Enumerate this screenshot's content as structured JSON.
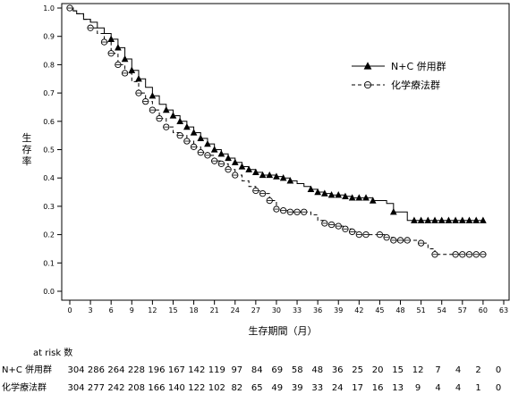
{
  "chart_data": {
    "type": "line",
    "xlabel": "生存期間（月）",
    "ylabel": "生存率",
    "xlim": [
      0,
      63
    ],
    "ylim": [
      0,
      1.0
    ],
    "x_ticks": [
      0,
      3,
      6,
      9,
      12,
      15,
      18,
      21,
      24,
      27,
      30,
      33,
      36,
      39,
      42,
      45,
      48,
      51,
      54,
      57,
      60,
      63
    ],
    "y_ticks": [
      0.0,
      0.1,
      0.2,
      0.3,
      0.4,
      0.5,
      0.6,
      0.7,
      0.8,
      0.9,
      1.0
    ],
    "x_tick_labels": [
      "0",
      "3",
      "6",
      "9",
      "12",
      "15",
      "18",
      "21",
      "24",
      "27",
      "30",
      "33",
      "36",
      "39",
      "42",
      "45",
      "48",
      "51",
      "54",
      "57",
      "60",
      "63"
    ],
    "y_tick_labels": [
      "0.0",
      "0.1",
      "0.2",
      "0.3",
      "0.4",
      "0.5",
      "0.6",
      "0.7",
      "0.8",
      "0.9",
      "1.0"
    ],
    "grid": false,
    "legend_position": "top-right",
    "series": [
      {
        "name": "N+C 併用群",
        "style": "solid",
        "marker": "triangle",
        "color": "#000000",
        "points": [
          [
            0,
            1.0
          ],
          [
            0.5,
            0.99
          ],
          [
            1,
            0.98
          ],
          [
            2,
            0.96
          ],
          [
            3,
            0.95
          ],
          [
            4,
            0.93
          ],
          [
            5,
            0.91
          ],
          [
            6,
            0.89
          ],
          [
            7,
            0.86
          ],
          [
            8,
            0.82
          ],
          [
            9,
            0.78
          ],
          [
            10,
            0.75
          ],
          [
            11,
            0.72
          ],
          [
            12,
            0.69
          ],
          [
            13,
            0.66
          ],
          [
            14,
            0.64
          ],
          [
            15,
            0.62
          ],
          [
            16,
            0.6
          ],
          [
            17,
            0.58
          ],
          [
            18,
            0.56
          ],
          [
            19,
            0.54
          ],
          [
            20,
            0.52
          ],
          [
            21,
            0.5
          ],
          [
            22,
            0.485
          ],
          [
            23,
            0.47
          ],
          [
            24,
            0.455
          ],
          [
            25,
            0.44
          ],
          [
            26,
            0.43
          ],
          [
            27,
            0.42
          ],
          [
            28,
            0.41
          ],
          [
            29,
            0.41
          ],
          [
            30,
            0.405
          ],
          [
            31,
            0.4
          ],
          [
            32,
            0.39
          ],
          [
            33,
            0.38
          ],
          [
            34,
            0.37
          ],
          [
            35,
            0.36
          ],
          [
            36,
            0.35
          ],
          [
            37,
            0.345
          ],
          [
            38,
            0.34
          ],
          [
            39,
            0.34
          ],
          [
            40,
            0.335
          ],
          [
            41,
            0.33
          ],
          [
            42,
            0.33
          ],
          [
            43,
            0.33
          ],
          [
            44,
            0.32
          ],
          [
            45,
            0.32
          ],
          [
            46,
            0.31
          ],
          [
            47,
            0.28
          ],
          [
            48,
            0.28
          ],
          [
            49,
            0.25
          ],
          [
            50,
            0.25
          ],
          [
            54,
            0.25
          ],
          [
            57,
            0.25
          ],
          [
            60,
            0.25
          ]
        ],
        "marker_x": [
          6,
          7,
          8,
          9,
          10,
          12,
          14,
          15,
          16,
          17,
          18,
          19,
          20,
          21,
          22,
          23,
          24,
          25,
          26,
          27,
          28,
          29,
          30,
          31,
          32,
          35,
          36,
          37,
          38,
          39,
          40,
          41,
          42,
          43,
          44,
          47,
          50,
          51,
          52,
          53,
          54,
          55,
          56,
          57,
          58,
          59,
          60
        ]
      },
      {
        "name": "化学療法群",
        "style": "dashed",
        "marker": "circle",
        "color": "#000000",
        "points": [
          [
            0,
            1.0
          ],
          [
            0.5,
            0.99
          ],
          [
            1,
            0.98
          ],
          [
            2,
            0.96
          ],
          [
            3,
            0.93
          ],
          [
            4,
            0.91
          ],
          [
            5,
            0.88
          ],
          [
            6,
            0.84
          ],
          [
            7,
            0.8
          ],
          [
            8,
            0.77
          ],
          [
            9,
            0.74
          ],
          [
            10,
            0.7
          ],
          [
            11,
            0.67
          ],
          [
            12,
            0.64
          ],
          [
            13,
            0.61
          ],
          [
            14,
            0.58
          ],
          [
            15,
            0.56
          ],
          [
            16,
            0.55
          ],
          [
            17,
            0.53
          ],
          [
            18,
            0.51
          ],
          [
            19,
            0.49
          ],
          [
            20,
            0.48
          ],
          [
            21,
            0.46
          ],
          [
            22,
            0.45
          ],
          [
            23,
            0.43
          ],
          [
            24,
            0.41
          ],
          [
            25,
            0.39
          ],
          [
            26,
            0.37
          ],
          [
            27,
            0.355
          ],
          [
            28,
            0.345
          ],
          [
            29,
            0.32
          ],
          [
            30,
            0.29
          ],
          [
            31,
            0.285
          ],
          [
            32,
            0.28
          ],
          [
            33,
            0.28
          ],
          [
            34,
            0.28
          ],
          [
            35,
            0.27
          ],
          [
            36,
            0.25
          ],
          [
            37,
            0.24
          ],
          [
            38,
            0.235
          ],
          [
            39,
            0.23
          ],
          [
            40,
            0.22
          ],
          [
            41,
            0.21
          ],
          [
            42,
            0.2
          ],
          [
            43,
            0.2
          ],
          [
            44,
            0.2
          ],
          [
            45,
            0.2
          ],
          [
            46,
            0.19
          ],
          [
            47,
            0.18
          ],
          [
            48,
            0.18
          ],
          [
            49,
            0.18
          ],
          [
            50,
            0.18
          ],
          [
            51,
            0.17
          ],
          [
            52,
            0.15
          ],
          [
            53,
            0.13
          ],
          [
            54,
            0.13
          ],
          [
            57,
            0.13
          ],
          [
            60,
            0.13
          ]
        ],
        "marker_x": [
          0,
          3,
          5,
          6,
          7,
          8,
          10,
          11,
          12,
          13,
          14,
          16,
          17,
          18,
          19,
          20,
          21,
          22,
          23,
          24,
          27,
          28,
          29,
          30,
          31,
          32,
          33,
          34,
          37,
          38,
          39,
          40,
          41,
          42,
          43,
          45,
          46,
          47,
          48,
          49,
          51,
          53,
          56,
          57,
          58,
          59,
          60
        ]
      }
    ],
    "risk_table": {
      "header": "at risk 数",
      "rows": [
        {
          "label": "N+C 併用群",
          "counts": [
            "304",
            "286",
            "264",
            "228",
            "196",
            "167",
            "142",
            "119",
            "97",
            "84",
            "69",
            "58",
            "48",
            "36",
            "25",
            "20",
            "15",
            "12",
            "7",
            "4",
            "2",
            "0"
          ]
        },
        {
          "label": "化学療法群",
          "counts": [
            "304",
            "277",
            "242",
            "208",
            "166",
            "140",
            "122",
            "102",
            "82",
            "65",
            "49",
            "39",
            "33",
            "24",
            "17",
            "16",
            "13",
            "9",
            "4",
            "4",
            "1",
            "0"
          ]
        }
      ]
    }
  }
}
